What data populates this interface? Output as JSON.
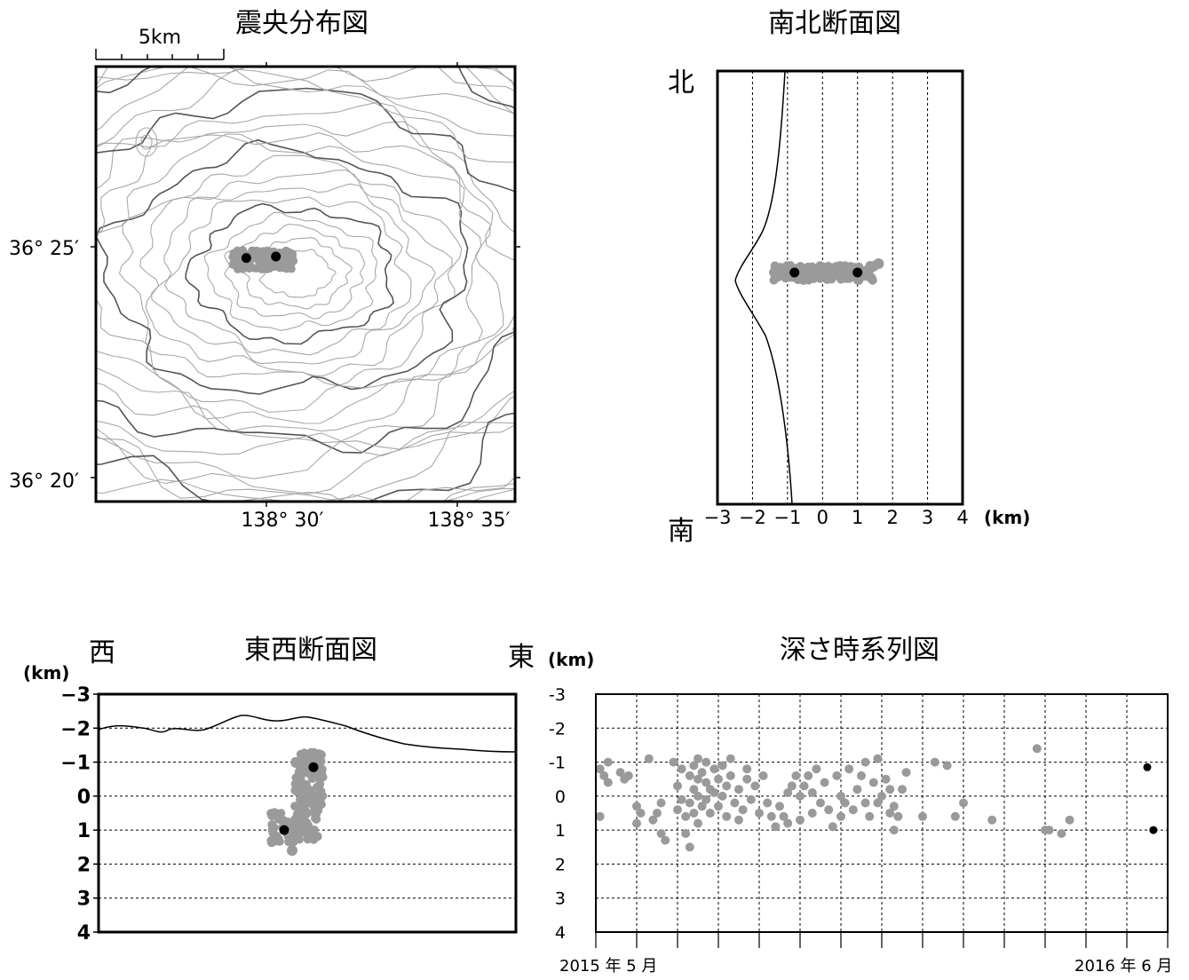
{
  "colors": {
    "old_event": "#9a9a9a",
    "new_event": "#000000",
    "contour": "#a8a8a8",
    "contour_index": "#555555",
    "grid": "#000000"
  },
  "map": {
    "title": "震央分布図",
    "scale_label": "5km",
    "lat_labels": [
      "36° 25′",
      "36° 20′"
    ],
    "lon_labels": [
      "138° 30′",
      "138° 35′"
    ]
  },
  "ns": {
    "title": "南北断面図",
    "north": "北",
    "south": "南",
    "unit": "(km)",
    "ticks": [
      "−3",
      "−2",
      "−1",
      "0",
      "1",
      "2",
      "3",
      "4"
    ]
  },
  "ew": {
    "title": "東西断面図",
    "west": "西",
    "east": "東",
    "unit": "(km)",
    "ticks": [
      "−3",
      "−2",
      "−1",
      "0",
      "1",
      "2",
      "3",
      "4"
    ]
  },
  "ts": {
    "title": "深さ時系列図",
    "unit": "(km)",
    "ticks": [
      "-3",
      "-2",
      "-1",
      "0",
      "1",
      "2",
      "3",
      "4"
    ],
    "start_label": "2015 年 5 月",
    "end_label": "2016 年 6 月"
  },
  "chart_data": [
    {
      "type": "scatter",
      "title": "震央分布図",
      "lon_range": [
        138.43,
        138.6
      ],
      "lat_range": [
        36.325,
        36.475
      ],
      "new_events": [
        {
          "lon": 138.491,
          "lat": 36.409
        },
        {
          "lon": 138.503,
          "lat": 36.4095
        }
      ]
    },
    {
      "type": "scatter",
      "title": "南北断面図",
      "xlim": [
        -3,
        4
      ],
      "ticks": [
        -3,
        -2,
        -1,
        0,
        1,
        2,
        3,
        4
      ],
      "new_events_depth_km": [
        -0.8,
        1.0
      ]
    },
    {
      "type": "scatter",
      "title": "東西断面図",
      "ylim": [
        -3,
        4
      ],
      "ticks": [
        -3,
        -2,
        -1,
        0,
        1,
        2,
        3,
        4
      ],
      "new_events_depth_km": [
        -0.85,
        1.0
      ]
    },
    {
      "type": "scatter",
      "title": "深さ時系列図",
      "x_range": [
        "2015-05",
        "2016-06"
      ],
      "ylim": [
        -3,
        4
      ],
      "ticks": [
        -3,
        -2,
        -1,
        0,
        1,
        2,
        3,
        4
      ],
      "old_events": [
        {
          "t": 0.1,
          "d": -0.8
        },
        {
          "t": 0.1,
          "d": 0.6
        },
        {
          "t": 0.2,
          "d": -0.6
        },
        {
          "t": 0.3,
          "d": -1.0
        },
        {
          "t": 0.3,
          "d": -0.4
        },
        {
          "t": 0.6,
          "d": -0.7
        },
        {
          "t": 0.7,
          "d": -0.5
        },
        {
          "t": 0.8,
          "d": -0.6
        },
        {
          "t": 1.0,
          "d": 0.3
        },
        {
          "t": 1.0,
          "d": 0.8
        },
        {
          "t": 1.1,
          "d": 0.5
        },
        {
          "t": 1.3,
          "d": -1.1
        },
        {
          "t": 1.4,
          "d": 0.7
        },
        {
          "t": 1.5,
          "d": 0.5
        },
        {
          "t": 1.6,
          "d": 0.2
        },
        {
          "t": 1.6,
          "d": 1.1
        },
        {
          "t": 1.7,
          "d": 1.3
        },
        {
          "t": 1.9,
          "d": -1.0
        },
        {
          "t": 2.0,
          "d": -0.3
        },
        {
          "t": 2.0,
          "d": 0.4
        },
        {
          "t": 2.1,
          "d": -0.8
        },
        {
          "t": 2.1,
          "d": 0.1
        },
        {
          "t": 2.2,
          "d": 0.6
        },
        {
          "t": 2.2,
          "d": 1.1
        },
        {
          "t": 2.3,
          "d": -0.6
        },
        {
          "t": 2.3,
          "d": 0.2
        },
        {
          "t": 2.3,
          "d": 1.5
        },
        {
          "t": 2.4,
          "d": -0.9
        },
        {
          "t": 2.4,
          "d": -0.2
        },
        {
          "t": 2.4,
          "d": 0.5
        },
        {
          "t": 2.5,
          "d": -1.1
        },
        {
          "t": 2.5,
          "d": -0.5
        },
        {
          "t": 2.5,
          "d": 0.0
        },
        {
          "t": 2.5,
          "d": 0.8
        },
        {
          "t": 2.6,
          "d": -0.7
        },
        {
          "t": 2.6,
          "d": 0.3
        },
        {
          "t": 2.7,
          "d": -1.0
        },
        {
          "t": 2.7,
          "d": -0.4
        },
        {
          "t": 2.7,
          "d": 0.1
        },
        {
          "t": 2.8,
          "d": -0.2
        },
        {
          "t": 2.8,
          "d": 0.5
        },
        {
          "t": 2.9,
          "d": -0.8
        },
        {
          "t": 2.9,
          "d": -0.1
        },
        {
          "t": 3.0,
          "d": 0.3
        },
        {
          "t": 3.0,
          "d": -0.5
        },
        {
          "t": 3.1,
          "d": -0.9
        },
        {
          "t": 3.1,
          "d": 0.0
        },
        {
          "t": 3.2,
          "d": -0.3
        },
        {
          "t": 3.2,
          "d": 0.6
        },
        {
          "t": 3.3,
          "d": -1.1
        },
        {
          "t": 3.3,
          "d": -0.6
        },
        {
          "t": 3.4,
          "d": 0.2
        },
        {
          "t": 3.5,
          "d": 0.7
        },
        {
          "t": 3.5,
          "d": -0.2
        },
        {
          "t": 3.6,
          "d": 0.4
        },
        {
          "t": 3.7,
          "d": -0.5
        },
        {
          "t": 3.7,
          "d": -0.8
        },
        {
          "t": 3.8,
          "d": 0.1
        },
        {
          "t": 3.9,
          "d": -0.3
        },
        {
          "t": 4.0,
          "d": 0.5
        },
        {
          "t": 4.1,
          "d": -0.6
        },
        {
          "t": 4.2,
          "d": 0.2
        },
        {
          "t": 4.3,
          "d": 0.6
        },
        {
          "t": 4.4,
          "d": 0.9
        },
        {
          "t": 4.5,
          "d": 0.3
        },
        {
          "t": 4.6,
          "d": 0.6
        },
        {
          "t": 4.7,
          "d": -0.1
        },
        {
          "t": 4.7,
          "d": 0.8
        },
        {
          "t": 4.8,
          "d": -0.3
        },
        {
          "t": 4.9,
          "d": -0.6
        },
        {
          "t": 5.0,
          "d": 0.0
        },
        {
          "t": 5.0,
          "d": 0.7
        },
        {
          "t": 5.1,
          "d": -0.3
        },
        {
          "t": 5.2,
          "d": -0.6
        },
        {
          "t": 5.3,
          "d": -0.1
        },
        {
          "t": 5.3,
          "d": 0.5
        },
        {
          "t": 5.4,
          "d": -0.8
        },
        {
          "t": 5.5,
          "d": 0.2
        },
        {
          "t": 5.6,
          "d": -0.4
        },
        {
          "t": 5.7,
          "d": 0.4
        },
        {
          "t": 5.8,
          "d": 0.9
        },
        {
          "t": 5.9,
          "d": -0.6
        },
        {
          "t": 6.0,
          "d": 0.0
        },
        {
          "t": 6.0,
          "d": 0.6
        },
        {
          "t": 6.1,
          "d": 0.2
        },
        {
          "t": 6.2,
          "d": -0.8
        },
        {
          "t": 6.3,
          "d": 0.4
        },
        {
          "t": 6.4,
          "d": -0.2
        },
        {
          "t": 6.5,
          "d": -0.6
        },
        {
          "t": 6.6,
          "d": 0.2
        },
        {
          "t": 6.6,
          "d": -1.0
        },
        {
          "t": 6.7,
          "d": 0.6
        },
        {
          "t": 6.8,
          "d": -0.4
        },
        {
          "t": 6.9,
          "d": 0.2
        },
        {
          "t": 6.9,
          "d": -1.1
        },
        {
          "t": 7.0,
          "d": 0.0
        },
        {
          "t": 7.1,
          "d": -0.5
        },
        {
          "t": 7.2,
          "d": 0.5
        },
        {
          "t": 7.2,
          "d": -0.2
        },
        {
          "t": 7.3,
          "d": 0.3
        },
        {
          "t": 7.3,
          "d": 1.0
        },
        {
          "t": 7.4,
          "d": 0.6
        },
        {
          "t": 7.5,
          "d": -0.2
        },
        {
          "t": 7.6,
          "d": -0.7
        },
        {
          "t": 8.0,
          "d": 0.6
        },
        {
          "t": 8.3,
          "d": -1.0
        },
        {
          "t": 8.6,
          "d": -0.9
        },
        {
          "t": 8.8,
          "d": 0.6
        },
        {
          "t": 9.0,
          "d": 0.2
        },
        {
          "t": 9.7,
          "d": 0.7
        },
        {
          "t": 10.8,
          "d": -1.4
        },
        {
          "t": 11.0,
          "d": 1.0
        },
        {
          "t": 11.1,
          "d": 1.0
        },
        {
          "t": 11.4,
          "d": 1.1
        },
        {
          "t": 11.6,
          "d": 0.7
        }
      ],
      "new_events": [
        {
          "t": 13.5,
          "d": -0.85
        },
        {
          "t": 13.65,
          "d": 1.0
        }
      ]
    }
  ]
}
